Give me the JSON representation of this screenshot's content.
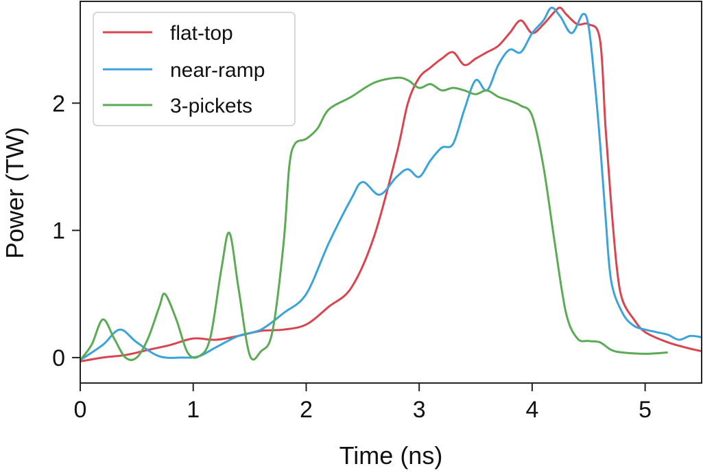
{
  "chart_data": {
    "type": "line",
    "title": "",
    "xlabel": "Time (ns)",
    "ylabel": "Power (TW)",
    "xlim": [
      0,
      5.5
    ],
    "ylim": [
      -0.2,
      2.8
    ],
    "xticks": [
      0,
      1,
      2,
      3,
      4,
      5
    ],
    "yticks": [
      0,
      1,
      2
    ],
    "xtick_labels": [
      "0",
      "1",
      "2",
      "3",
      "4",
      "5"
    ],
    "ytick_labels": [
      "0",
      "1",
      "2"
    ],
    "grid": false,
    "legend_position": "top-left",
    "series": [
      {
        "name": "flat-top",
        "color": "#d9444f",
        "x": [
          0,
          0.2,
          0.4,
          0.6,
          0.8,
          1.0,
          1.2,
          1.4,
          1.6,
          1.8,
          2.0,
          2.2,
          2.4,
          2.6,
          2.8,
          2.9,
          3.0,
          3.1,
          3.2,
          3.3,
          3.4,
          3.5,
          3.6,
          3.7,
          3.8,
          3.9,
          4.0,
          4.1,
          4.2,
          4.25,
          4.3,
          4.4,
          4.5,
          4.6,
          4.65,
          4.7,
          4.75,
          4.8,
          4.9,
          5.0,
          5.2,
          5.4,
          5.5
        ],
        "y": [
          -0.03,
          0.0,
          0.02,
          0.06,
          0.1,
          0.15,
          0.14,
          0.17,
          0.21,
          0.22,
          0.26,
          0.4,
          0.55,
          0.95,
          1.6,
          2.0,
          2.2,
          2.28,
          2.35,
          2.4,
          2.3,
          2.35,
          2.4,
          2.45,
          2.55,
          2.65,
          2.55,
          2.62,
          2.72,
          2.75,
          2.7,
          2.62,
          2.62,
          2.5,
          1.8,
          1.2,
          0.7,
          0.45,
          0.3,
          0.2,
          0.12,
          0.07,
          0.05
        ]
      },
      {
        "name": "near-ramp",
        "color": "#3ba3dc",
        "x": [
          0,
          0.2,
          0.35,
          0.5,
          0.7,
          0.9,
          1.05,
          1.2,
          1.4,
          1.6,
          1.8,
          2.0,
          2.2,
          2.4,
          2.5,
          2.65,
          2.8,
          2.9,
          3.0,
          3.1,
          3.2,
          3.3,
          3.4,
          3.5,
          3.6,
          3.7,
          3.8,
          3.9,
          4.0,
          4.1,
          4.17,
          4.25,
          4.35,
          4.45,
          4.5,
          4.55,
          4.6,
          4.65,
          4.7,
          4.8,
          4.9,
          5.0,
          5.1,
          5.2,
          5.3,
          5.4,
          5.5
        ],
        "y": [
          -0.02,
          0.1,
          0.22,
          0.12,
          0.01,
          0.0,
          0.01,
          0.08,
          0.17,
          0.22,
          0.35,
          0.5,
          0.9,
          1.25,
          1.38,
          1.28,
          1.42,
          1.48,
          1.42,
          1.55,
          1.65,
          1.68,
          1.95,
          2.18,
          2.1,
          2.3,
          2.42,
          2.4,
          2.55,
          2.65,
          2.75,
          2.68,
          2.55,
          2.7,
          2.6,
          2.2,
          1.7,
          1.1,
          0.6,
          0.35,
          0.25,
          0.22,
          0.2,
          0.18,
          0.14,
          0.17,
          0.16
        ]
      },
      {
        "name": "3-pickets",
        "color": "#5aab54",
        "x": [
          0,
          0.1,
          0.2,
          0.3,
          0.4,
          0.5,
          0.6,
          0.7,
          0.75,
          0.85,
          0.95,
          1.05,
          1.15,
          1.25,
          1.32,
          1.4,
          1.5,
          1.6,
          1.7,
          1.8,
          1.85,
          1.9,
          2.0,
          2.1,
          2.2,
          2.4,
          2.6,
          2.8,
          2.9,
          3.0,
          3.1,
          3.2,
          3.3,
          3.4,
          3.5,
          3.6,
          3.7,
          3.8,
          3.9,
          4.0,
          4.1,
          4.2,
          4.3,
          4.4,
          4.5,
          4.6,
          4.7,
          4.8,
          5.0,
          5.2
        ],
        "y": [
          -0.02,
          0.1,
          0.3,
          0.15,
          0.0,
          0.0,
          0.15,
          0.4,
          0.5,
          0.3,
          0.04,
          0.01,
          0.15,
          0.7,
          0.98,
          0.55,
          0.02,
          0.05,
          0.2,
          0.9,
          1.5,
          1.68,
          1.72,
          1.8,
          1.95,
          2.05,
          2.16,
          2.2,
          2.18,
          2.12,
          2.15,
          2.1,
          2.12,
          2.1,
          2.07,
          2.1,
          2.05,
          2.02,
          1.98,
          1.9,
          1.5,
          0.9,
          0.35,
          0.15,
          0.13,
          0.12,
          0.06,
          0.04,
          0.03,
          0.04
        ]
      }
    ]
  }
}
